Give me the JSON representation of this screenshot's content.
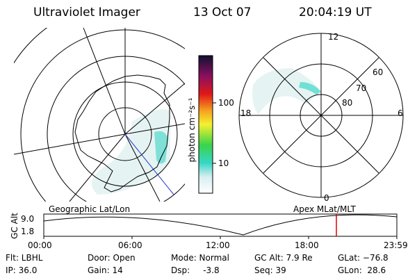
{
  "header": {
    "title": "Ultraviolet Imager",
    "date": "13 Oct 07",
    "time": "20:04:19 UT"
  },
  "colorbar": {
    "label": "photon cm⁻²s⁻¹",
    "ticks": [
      "100",
      "10"
    ]
  },
  "polar_plot": {
    "mlt_labels": {
      "top": "12",
      "left": "18",
      "right": "6",
      "bottom": "0"
    },
    "lat_labels": [
      "60",
      "70",
      "80"
    ]
  },
  "captions": {
    "left": "Geographic Lat/Lon",
    "right": "Apex MLat/MLT"
  },
  "altitude_plot": {
    "ylabel": "GC Alt",
    "yticks": [
      "9.0",
      "1.8"
    ],
    "xticks": [
      "00:00",
      "06:00",
      "12:00",
      "18:00",
      "23:59"
    ],
    "marker_color": "#e00000"
  },
  "info": {
    "flt": "Flt: LBHL",
    "ip": "IP: 36.0",
    "door": "Door: Open",
    "gain": "Gain: 14",
    "mode": "Mode: Normal",
    "dsp": "Dsp:     -3.8",
    "gcalt": "GC Alt: 7.9 Re",
    "seq": "Seq: 39",
    "glat": "GLat: −76.8",
    "glon": "GLon:  28.6"
  }
}
